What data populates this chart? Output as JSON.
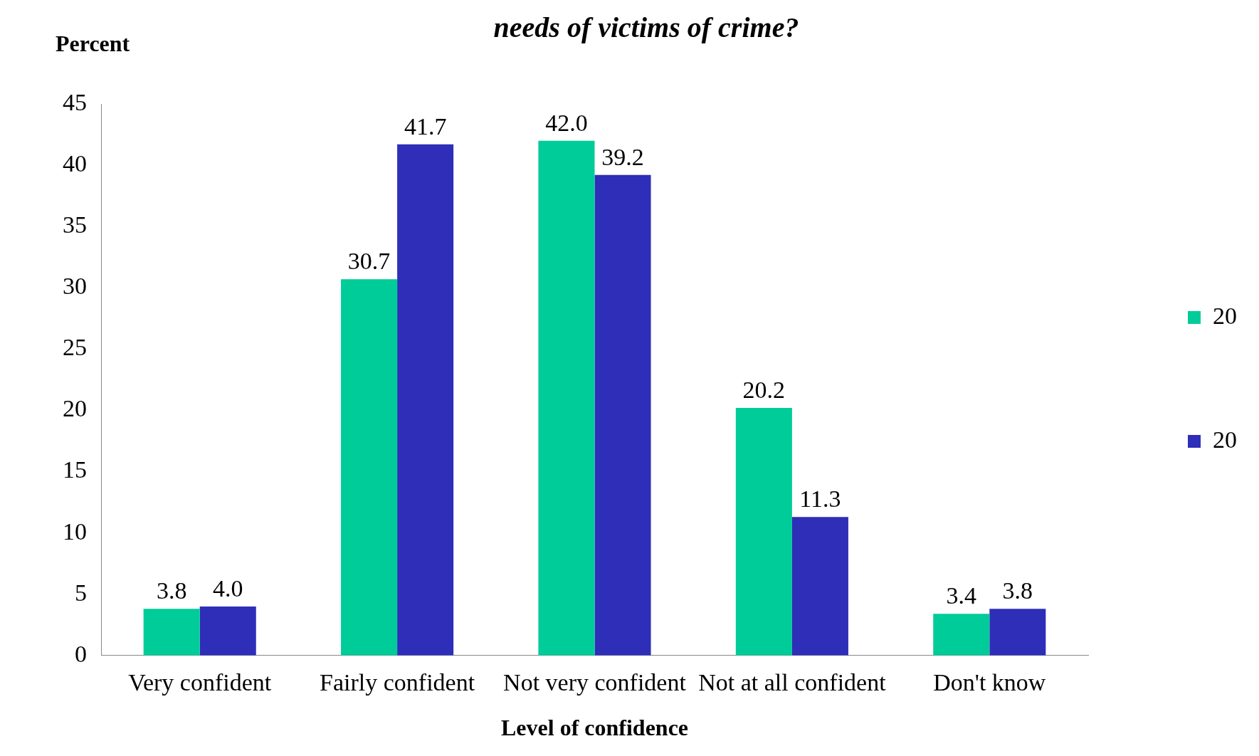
{
  "chart_data": {
    "type": "bar",
    "title": "needs of victims of crime?",
    "ylabel": "Percent",
    "xlabel": "Level of confidence",
    "categories": [
      "Very confident",
      "Fairly confident",
      "Not very confident",
      "Not at all confident",
      "Don't know"
    ],
    "series": [
      {
        "name": "20",
        "color": "#00cc99",
        "values": [
          3.8,
          30.7,
          42.0,
          20.2,
          3.4
        ],
        "value_labels": [
          "3.8",
          "30.7",
          "42.0",
          "20.2",
          "3.4"
        ]
      },
      {
        "name": "20",
        "color": "#2e2eb8",
        "values": [
          4.0,
          41.7,
          39.2,
          11.3,
          3.8
        ],
        "value_labels": [
          "4.0",
          "41.7",
          "39.2",
          "11.3",
          "3.8"
        ]
      }
    ],
    "ylim": [
      0,
      45
    ],
    "yticks": [
      0,
      5,
      10,
      15,
      20,
      25,
      30,
      35,
      40,
      45
    ],
    "grid": false,
    "legend": "right"
  }
}
